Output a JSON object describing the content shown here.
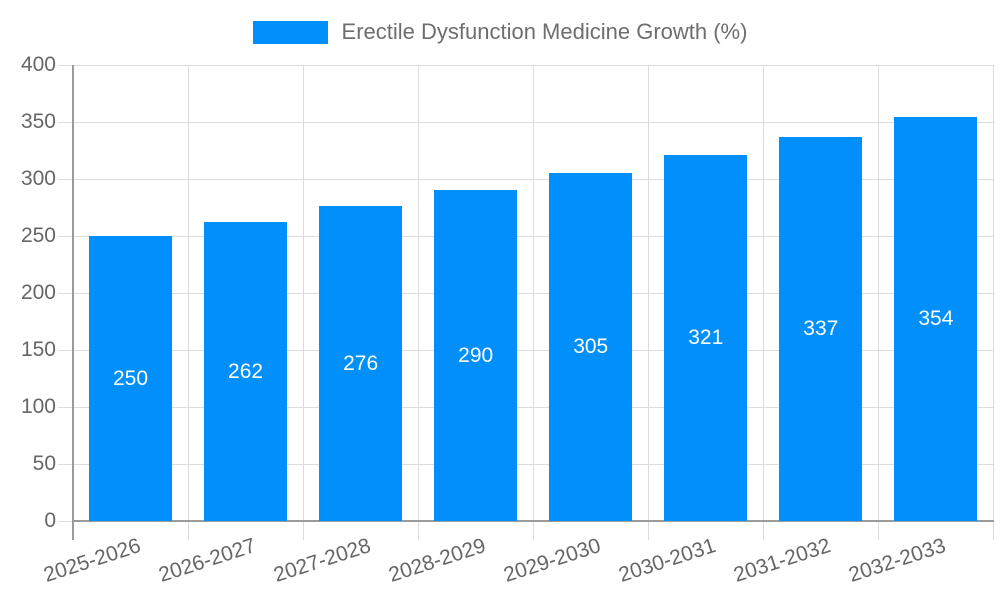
{
  "legend": {
    "label": "Erectile Dysfunction Medicine Growth (%)"
  },
  "chart_data": {
    "type": "bar",
    "title": "Erectile Dysfunction Medicine Growth (%)",
    "categories": [
      "2025-2026",
      "2026-2027",
      "2027-2028",
      "2028-2029",
      "2029-2030",
      "2030-2031",
      "2031-2032",
      "2032-2033"
    ],
    "values": [
      250,
      262,
      276,
      290,
      305,
      321,
      337,
      354
    ],
    "value_labels": [
      "250",
      "262",
      "276",
      "290",
      "305",
      "321",
      "337",
      "354"
    ],
    "xlabel": "",
    "ylabel": "",
    "ylim": [
      0,
      400
    ],
    "yticks": [
      0,
      50,
      100,
      150,
      200,
      250,
      300,
      350,
      400
    ],
    "grid": true,
    "legend_position": "top",
    "bar_color": "#008ffb",
    "value_label_color": "#ffffff"
  },
  "colors": {
    "accent": "#008ffb",
    "axis_line": "#9b9b9b",
    "gridline": "#dcdcdc",
    "tick_label_text": "#666666",
    "legend_text": "#6e6e6e",
    "background": "#ffffff"
  }
}
